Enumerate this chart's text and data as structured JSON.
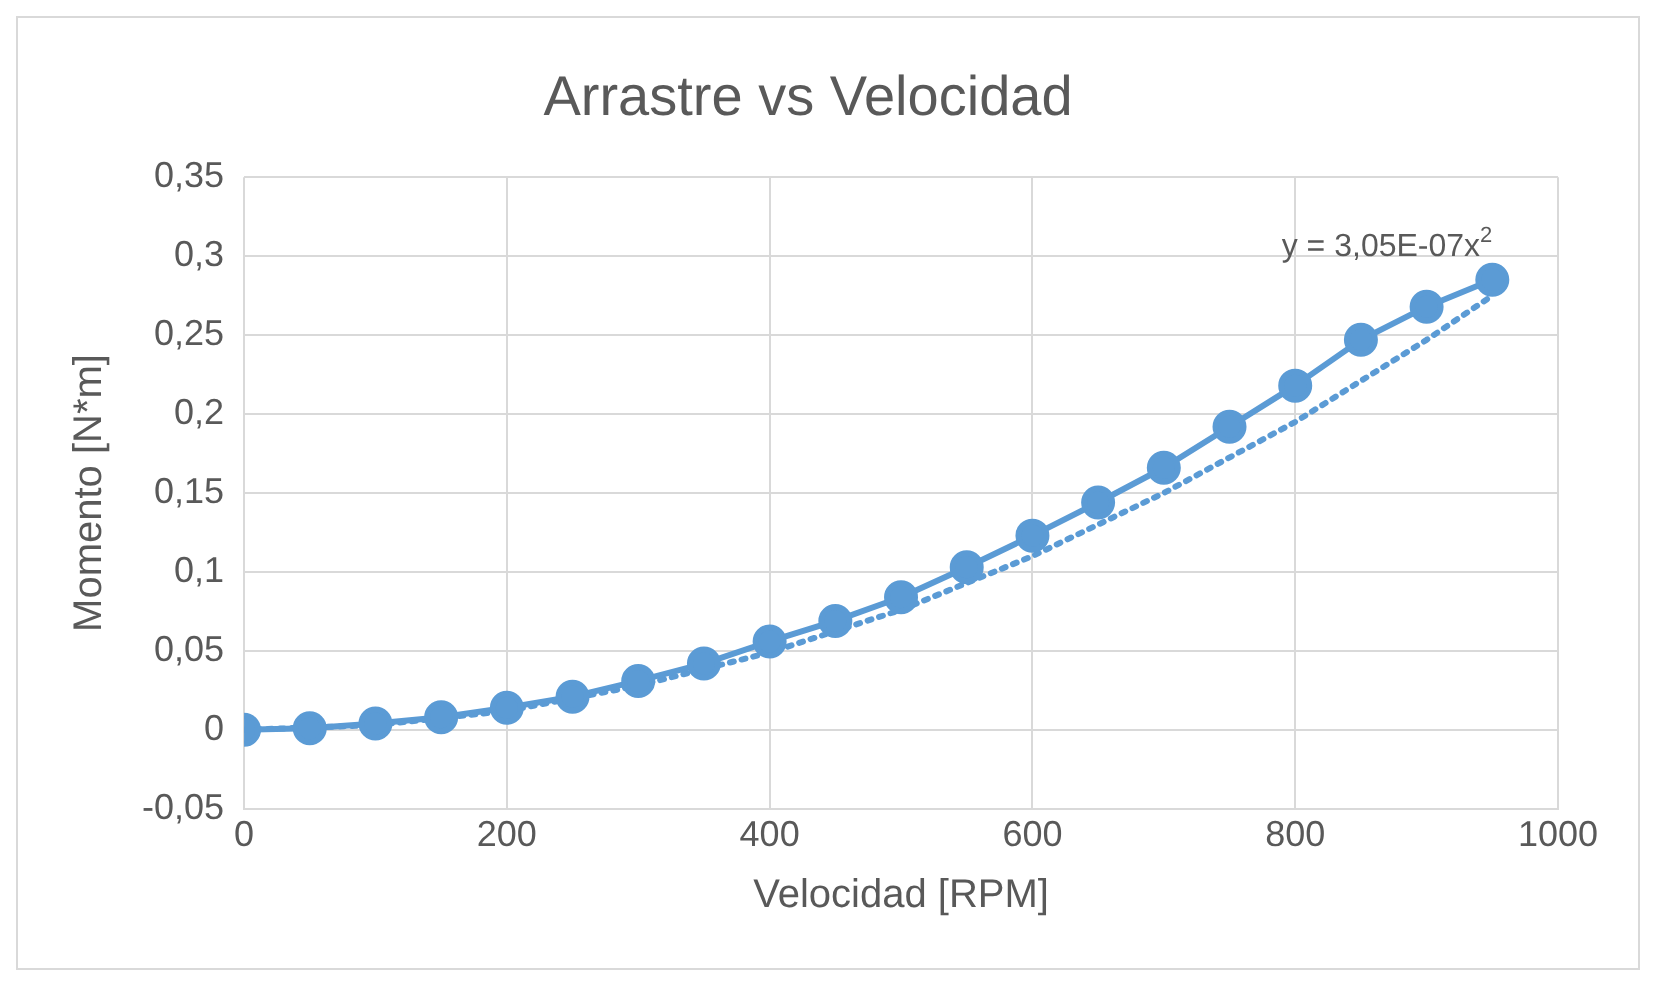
{
  "chart_data": {
    "type": "line",
    "title": "Arrastre vs Velocidad",
    "xlabel": "Velocidad [RPM]",
    "ylabel": "Momento [N*m]",
    "x": [
      0,
      50,
      100,
      150,
      200,
      250,
      300,
      350,
      400,
      450,
      500,
      550,
      600,
      650,
      700,
      750,
      800,
      850,
      900,
      950
    ],
    "series": [
      {
        "color": "#5b9bd5",
        "marker": "circle",
        "line_style": "solid",
        "values": [
          0,
          0.001,
          0.004,
          0.008,
          0.014,
          0.021,
          0.031,
          0.042,
          0.056,
          0.069,
          0.084,
          0.103,
          0.123,
          0.144,
          0.166,
          0.192,
          0.218,
          0.247,
          0.268,
          0.285
        ]
      },
      {
        "type": "line",
        "color": "#5b9bd5",
        "marker": "none",
        "line_style": "dotted",
        "x": [
          0,
          100,
          200,
          300,
          400,
          500,
          600,
          700,
          800,
          900,
          950
        ],
        "values": [
          0,
          0.003,
          0.012,
          0.028,
          0.049,
          0.076,
          0.11,
          0.15,
          0.195,
          0.247,
          0.275
        ]
      }
    ],
    "xlim": [
      0,
      1000
    ],
    "xticks": [
      0,
      200,
      400,
      600,
      800,
      1000
    ],
    "ylim": [
      -0.05,
      0.35
    ],
    "yticks": [
      {
        "value": -0.05,
        "label": "-0,05"
      },
      0,
      {
        "value": 0.05,
        "label": "0,05"
      },
      {
        "value": 0.1,
        "label": "0,1"
      },
      {
        "value": 0.15,
        "label": "0,15"
      },
      {
        "value": 0.2,
        "label": "0,2"
      },
      {
        "value": 0.25,
        "label": "0,25"
      },
      {
        "value": 0.3,
        "label": "0,3"
      },
      {
        "value": 0.35,
        "label": "0,35"
      }
    ],
    "annotations": [
      {
        "text": "y = 3,05E-07x$^{2}$",
        "x": 950,
        "y": 0.3
      }
    ],
    "grid": true,
    "legend": false
  }
}
